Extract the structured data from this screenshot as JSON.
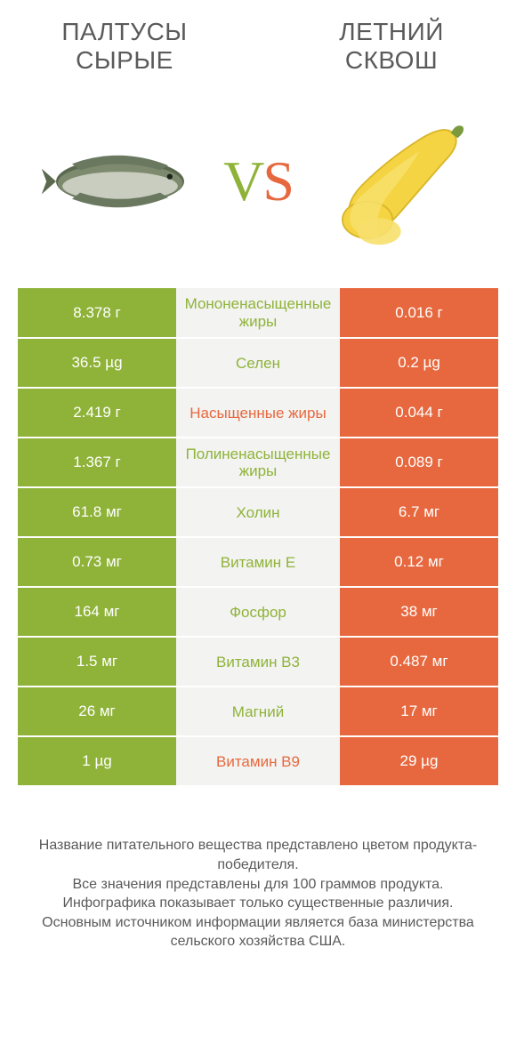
{
  "colors": {
    "green": "#8fb339",
    "orange": "#e7683e",
    "mid_bg": "#f3f3f1",
    "text": "#5a5a5a"
  },
  "left": {
    "title": "ПАЛТУСЫ СЫРЫЕ"
  },
  "right": {
    "title": "ЛЕТНИЙ СКВОШ"
  },
  "vs": {
    "v": "V",
    "s": "S"
  },
  "rows": [
    {
      "left": "8.378 г",
      "label": "Мононенасыщенные жиры",
      "winner": "green",
      "right": "0.016 г"
    },
    {
      "left": "36.5 µg",
      "label": "Селен",
      "winner": "green",
      "right": "0.2 µg"
    },
    {
      "left": "2.419 г",
      "label": "Насыщенные жиры",
      "winner": "orange",
      "right": "0.044 г"
    },
    {
      "left": "1.367 г",
      "label": "Полиненасыщенные жиры",
      "winner": "green",
      "right": "0.089 г"
    },
    {
      "left": "61.8 мг",
      "label": "Холин",
      "winner": "green",
      "right": "6.7 мг"
    },
    {
      "left": "0.73 мг",
      "label": "Витамин E",
      "winner": "green",
      "right": "0.12 мг"
    },
    {
      "left": "164 мг",
      "label": "Фосфор",
      "winner": "green",
      "right": "38 мг"
    },
    {
      "left": "1.5 мг",
      "label": "Витамин B3",
      "winner": "green",
      "right": "0.487 мг"
    },
    {
      "left": "26 мг",
      "label": "Магний",
      "winner": "green",
      "right": "17 мг"
    },
    {
      "left": "1 µg",
      "label": "Витамин B9",
      "winner": "orange",
      "right": "29 µg"
    }
  ],
  "footnote": "Название питательного вещества представлено цветом продукта-победителя.\nВсе значения представлены для 100 граммов продукта.\nИнфографика показывает только существенные различия.\nОсновным источником информации является база министерства сельского хозяйства США."
}
